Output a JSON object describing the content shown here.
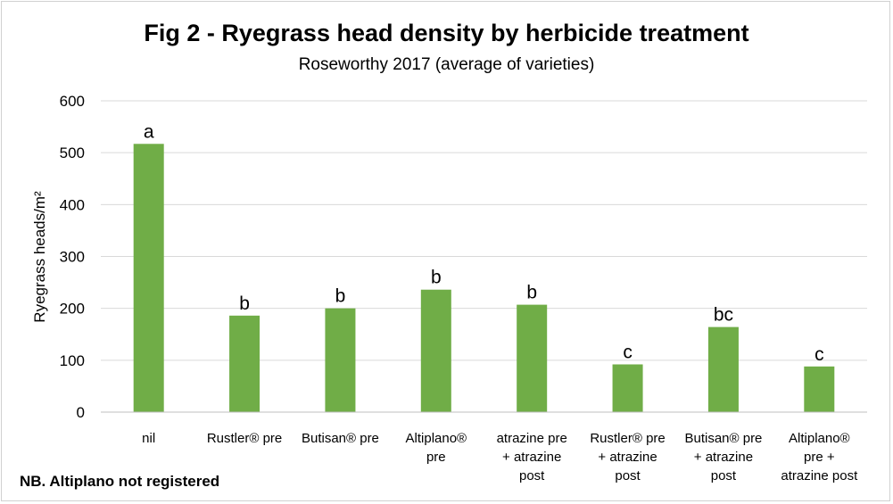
{
  "chart_data": {
    "type": "bar",
    "title": "Fig 2 - Ryegrass head density by herbicide treatment",
    "subtitle": "Roseworthy 2017 (average of varieties)",
    "xlabel": "",
    "ylabel": "Ryegrass heads/m²",
    "ylim": [
      0,
      600
    ],
    "yticks": [
      "0",
      "100",
      "200",
      "300",
      "400",
      "500",
      "600"
    ],
    "grid": true,
    "bar_color": "#70ad47",
    "categories": [
      [
        "nil"
      ],
      [
        "Rustler® pre"
      ],
      [
        "Butisan® pre"
      ],
      [
        "Altiplano®",
        "pre"
      ],
      [
        "atrazine pre",
        "+ atrazine",
        "post"
      ],
      [
        "Rustler® pre",
        "+ atrazine",
        "post"
      ],
      [
        "Butisan® pre",
        "+ atrazine",
        "post"
      ],
      [
        "Altiplano®",
        "pre +",
        "atrazine post"
      ]
    ],
    "values": [
      517,
      186,
      200,
      236,
      207,
      92,
      164,
      88
    ],
    "bar_labels": [
      "a",
      "b",
      "b",
      "b",
      "b",
      "c",
      "bc",
      "c"
    ],
    "footnote": "NB. Altiplano not registered"
  }
}
